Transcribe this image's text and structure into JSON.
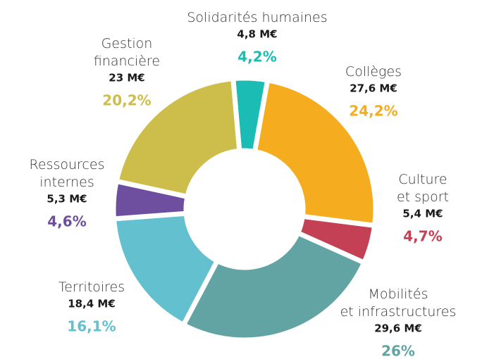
{
  "chart_data": {
    "type": "donut",
    "categories": [
      "Solidarités humaines",
      "Collèges",
      "Culture\net sport",
      "Mobilités\net infrastructures",
      "Territoires",
      "Ressources\ninternes",
      "Gestion\nfinancière"
    ],
    "amount_labels": [
      "4,8 M€",
      "27,6 M€",
      "5,4 M€",
      "29,6 M€",
      "18,4 M€",
      "5,3 M€",
      "23 M€"
    ],
    "values": [
      4.2,
      24.2,
      4.7,
      26,
      16.1,
      4.6,
      20.2
    ],
    "value_labels": [
      "4,2%",
      "24,2%",
      "4,7%",
      "26%",
      "16,1%",
      "4,6%",
      "20,2%"
    ],
    "colors": [
      "#1bbcb4",
      "#f5ad1f",
      "#c44055",
      "#62a3a3",
      "#62c0cf",
      "#6e4f9f",
      "#cdbd4a"
    ]
  }
}
